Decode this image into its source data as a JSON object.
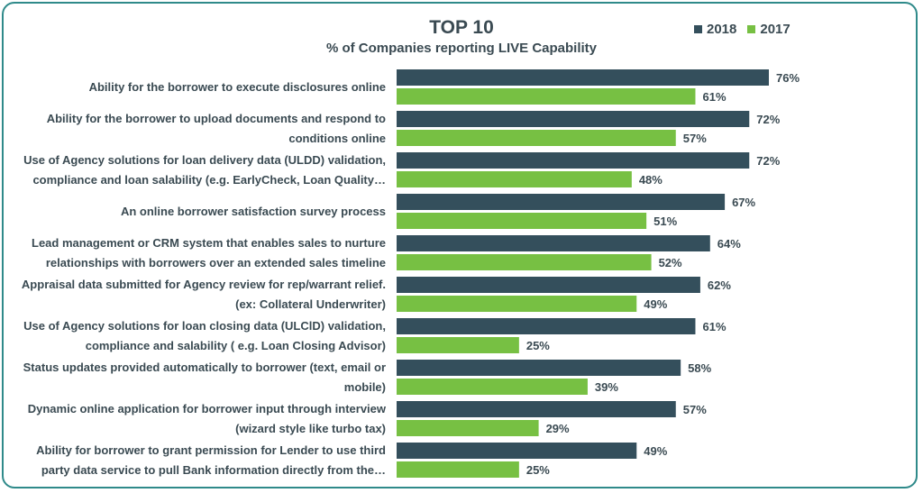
{
  "chart_data": {
    "type": "bar",
    "orientation": "horizontal",
    "title": "TOP 10",
    "subtitle": "% of Companies reporting LIVE Capability",
    "categories": [
      "Ability for the borrower to execute disclosures online",
      "Ability for the borrower to upload documents and respond to conditions online",
      "Use of Agency solutions for loan delivery data (ULDD) validation, compliance and loan salability (e.g. EarlyCheck, Loan Quality…",
      "An online borrower satisfaction survey process",
      "Lead management or CRM system that enables sales to nurture relationships with borrowers over an extended sales timeline",
      "Appraisal data submitted for Agency review for rep/warrant relief. (ex:  Collateral Underwriter)",
      "Use of Agency solutions for loan closing data (ULClD) validation, compliance and salability ( e.g. Loan Closing Advisor)",
      "Status updates provided automatically to borrower (text, email or mobile)",
      "Dynamic online application for borrower input through interview (wizard style like turbo tax)",
      "Ability for borrower to grant permission for Lender to use third party data service to pull Bank information directly from the…"
    ],
    "category_lines": [
      [
        "Ability for the borrower to execute disclosures online"
      ],
      [
        "Ability for the borrower to upload documents and respond to",
        "conditions online"
      ],
      [
        "Use of Agency solutions for loan delivery data (ULDD) validation,",
        "compliance and loan salability (e.g. EarlyCheck, Loan Quality…"
      ],
      [
        "An online borrower satisfaction survey process"
      ],
      [
        "Lead management or CRM system that enables sales to nurture",
        "relationships with borrowers over an extended sales timeline"
      ],
      [
        "Appraisal data submitted for Agency review for rep/warrant relief.",
        "(ex:  Collateral Underwriter)"
      ],
      [
        "Use of Agency solutions for loan closing data (ULClD) validation,",
        "compliance and salability ( e.g. Loan Closing Advisor)"
      ],
      [
        "Status updates provided automatically to borrower (text, email or",
        "mobile)"
      ],
      [
        "Dynamic online application for borrower input through interview",
        "(wizard style like turbo tax)"
      ],
      [
        "Ability for borrower to grant permission for Lender to use third",
        "party data service to pull Bank information directly from the…"
      ]
    ],
    "series": [
      {
        "name": "2018",
        "color": "#344f5c",
        "values": [
          76,
          72,
          72,
          67,
          64,
          62,
          61,
          58,
          57,
          49
        ]
      },
      {
        "name": "2017",
        "color": "#77c043",
        "values": [
          61,
          57,
          48,
          51,
          52,
          49,
          25,
          39,
          29,
          25
        ]
      }
    ],
    "value_suffix": "%",
    "xlim": [
      0,
      100
    ],
    "grid": false,
    "legend": "top-right",
    "axes_visible": false
  }
}
